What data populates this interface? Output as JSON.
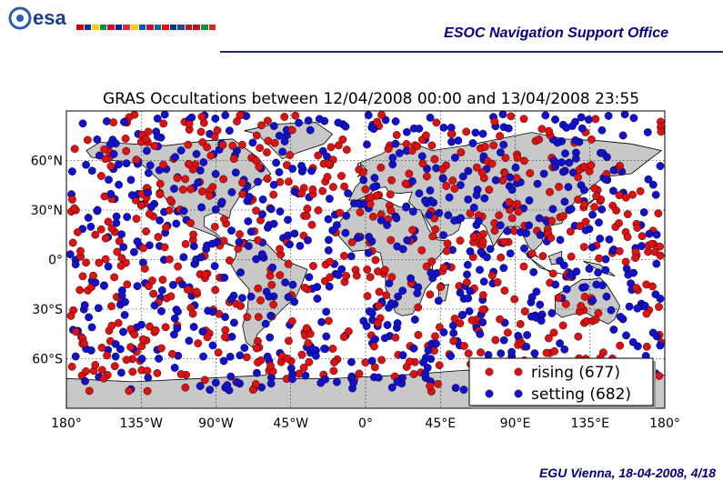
{
  "header": {
    "logo_text": "esa",
    "office_title": "ESOC Navigation Support Office"
  },
  "footer": {
    "text": "EGU Vienna, 18-04-2008,  4/18"
  },
  "colors": {
    "rising": "#dd1111",
    "setting": "#1111cc",
    "land": "#c8c8c8",
    "header_blue": "#000080"
  },
  "chart_data": {
    "type": "scatter",
    "title": "GRAS Occultations between 12/04/2008 00:00 and 13/04/2008 23:55",
    "xlim": [
      -180,
      180
    ],
    "ylim": [
      -90,
      90
    ],
    "x_ticks": [
      -180,
      -135,
      -90,
      -45,
      0,
      45,
      90,
      135,
      180
    ],
    "x_tick_labels": [
      "180°",
      "135°W",
      "90°W",
      "45°W",
      "0°",
      "45°E",
      "90°E",
      "135°E",
      "180°"
    ],
    "y_ticks": [
      60,
      30,
      0,
      -30,
      -60
    ],
    "y_tick_labels": [
      "60°N",
      "30°N",
      "0°",
      "30°S",
      "60°S"
    ],
    "grid": true,
    "legend_position": "bottom-right",
    "series": [
      {
        "name": "rising (677)",
        "count": 677,
        "color": "#dd1111"
      },
      {
        "name": "setting (682)",
        "count": 682,
        "color": "#1111cc"
      }
    ]
  }
}
